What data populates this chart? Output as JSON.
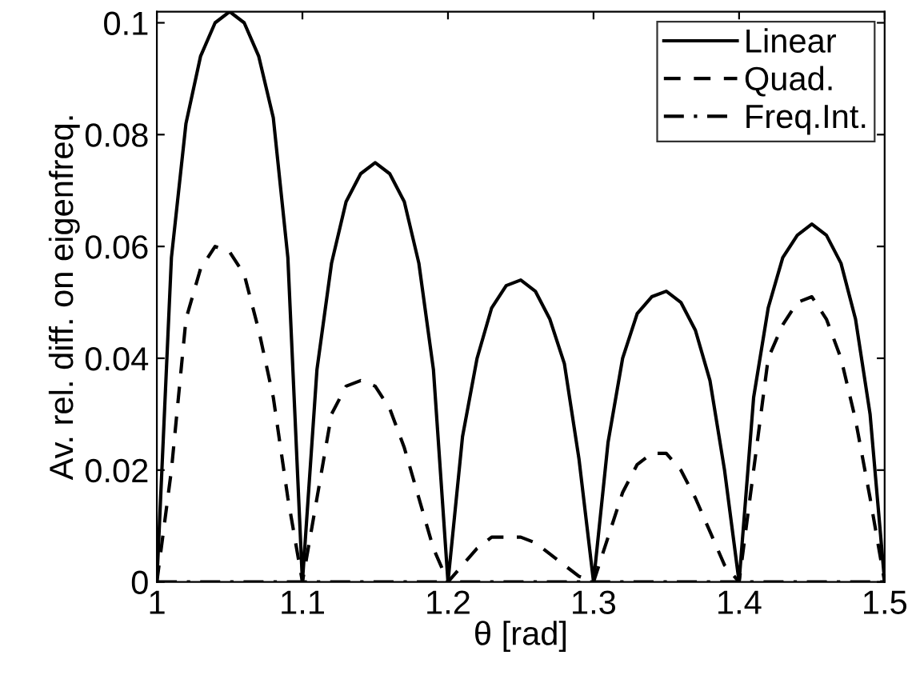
{
  "chart_data": {
    "type": "line",
    "xlabel": "θ [rad]",
    "ylabel": "Av. rel. diff. on eigenfreq.",
    "x": [
      1.0,
      1.01,
      1.02,
      1.03,
      1.04,
      1.05,
      1.06,
      1.07,
      1.08,
      1.09,
      1.1,
      1.11,
      1.12,
      1.13,
      1.14,
      1.15,
      1.16,
      1.17,
      1.18,
      1.19,
      1.2,
      1.21,
      1.22,
      1.23,
      1.24,
      1.25,
      1.26,
      1.27,
      1.28,
      1.29,
      1.3,
      1.31,
      1.32,
      1.33,
      1.34,
      1.35,
      1.36,
      1.37,
      1.38,
      1.39,
      1.4,
      1.41,
      1.42,
      1.43,
      1.44,
      1.45,
      1.46,
      1.47,
      1.48,
      1.49,
      1.5
    ],
    "series": [
      {
        "name": "Linear",
        "color": "#000000",
        "line_style": "solid",
        "values": [
          0,
          0.058,
          0.082,
          0.094,
          0.1,
          0.102,
          0.1,
          0.094,
          0.083,
          0.058,
          0,
          0.038,
          0.057,
          0.068,
          0.073,
          0.075,
          0.073,
          0.068,
          0.057,
          0.038,
          0,
          0.026,
          0.04,
          0.049,
          0.053,
          0.054,
          0.052,
          0.047,
          0.039,
          0.022,
          0,
          0.025,
          0.04,
          0.048,
          0.051,
          0.052,
          0.05,
          0.045,
          0.036,
          0.02,
          0,
          0.033,
          0.049,
          0.058,
          0.062,
          0.064,
          0.062,
          0.057,
          0.047,
          0.03,
          0
        ]
      },
      {
        "name": "Quad.",
        "color": "#000000",
        "line_style": "dashed",
        "values": [
          0,
          0.02,
          0.047,
          0.056,
          0.06,
          0.059,
          0.055,
          0.045,
          0.033,
          0.015,
          0,
          0.015,
          0.03,
          0.035,
          0.036,
          0.035,
          0.031,
          0.024,
          0.015,
          0.006,
          0,
          0.003,
          0.006,
          0.008,
          0.008,
          0.008,
          0.007,
          0.005,
          0.003,
          0.001,
          0,
          0.008,
          0.016,
          0.021,
          0.023,
          0.023,
          0.02,
          0.015,
          0.009,
          0.003,
          0,
          0.02,
          0.04,
          0.046,
          0.05,
          0.051,
          0.047,
          0.04,
          0.029,
          0.015,
          0
        ]
      },
      {
        "name": "Freq.Int.",
        "color": "#000000",
        "line_style": "dashdot",
        "values": [
          0,
          0,
          0,
          0,
          0,
          0,
          0,
          0,
          0,
          0,
          0,
          0,
          0,
          0,
          0,
          0,
          0,
          0,
          0,
          0,
          0,
          0,
          0,
          0,
          0,
          0,
          0,
          0,
          0,
          0,
          0,
          0,
          0,
          0,
          0,
          0,
          0,
          0,
          0,
          0,
          0,
          0,
          0,
          0,
          0,
          0,
          0,
          0,
          0,
          0,
          0
        ]
      }
    ],
    "xlim": [
      1,
      1.5
    ],
    "xticks": [
      1,
      1.1,
      1.2,
      1.3,
      1.4,
      1.5
    ],
    "ylim": [
      0,
      0.102
    ],
    "yticks": [
      0,
      0.02,
      0.04,
      0.06,
      0.08,
      0.1
    ],
    "grid": false,
    "legend": "top right",
    "marker": "none"
  }
}
